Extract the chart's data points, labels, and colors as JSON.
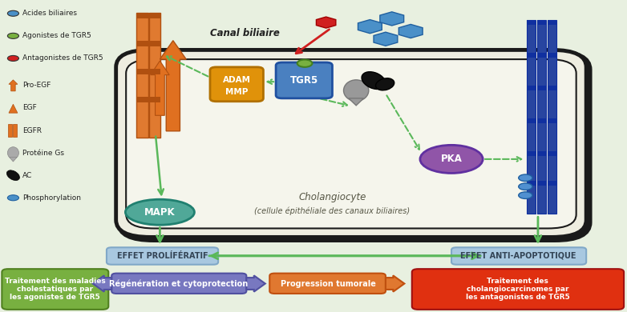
{
  "bg_color": "#e8f0e0",
  "cell_border": "#1a1a1a",
  "green_arrow": "#5ab85a",
  "red_arrow": "#d02020",
  "orange_color": "#e07020",
  "blue_tgr5": "#4a80c0",
  "gold_adam": "#e0920a",
  "purple_pka": "#9055a8",
  "teal_mapk": "#50a898",
  "light_blue_box": "#a8c8e0",
  "green_box": "#78b040",
  "red_box": "#e03010",
  "purple_box": "#7878c0",
  "orange_box": "#e07830",
  "canal_biliaire_text": "Canal biliaire",
  "cholangiocyte_text": "Cholangiocyte",
  "cholangiocyte_sub": "(cellule épithéliale des canaux biliaires)",
  "effet_prolif": "EFFET PROLÍFÉRATIF",
  "effet_anti": "EFFET ANTI-APOPTOTIQUE",
  "box1_text": "Traitement des maladies\ncholestatiques par\nles agonistes de TGR5",
  "box2_text": "Régénération et cytoprotection",
  "box3_text": "Progression tumorale",
  "box4_text": "Traitement des\ncholangiocarcinomes par\nles antagonistes de TGR5"
}
